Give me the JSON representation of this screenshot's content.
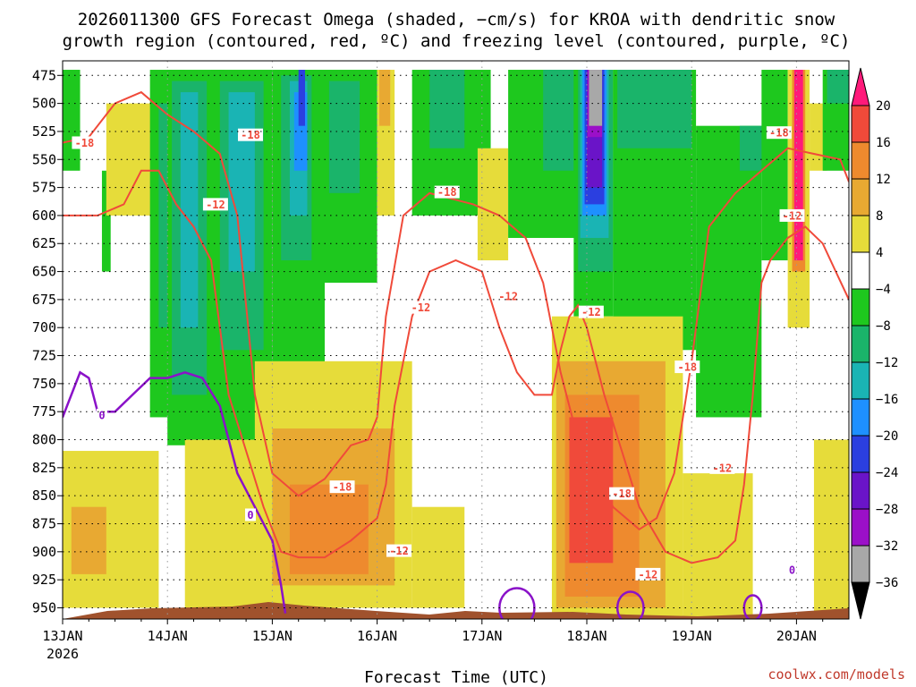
{
  "title_line1": "2026011300 GFS Forecast Omega (shaded, −cm/s) for KROA with dendritic snow",
  "title_line2": "growth region (contoured, red, ºC) and freezing level (contoured, purple, ºC)",
  "xlabel": "Forecast Time (UTC)",
  "credit": "coolwx.com/models",
  "colors": {
    "dgz_contour": "#f04a3a",
    "freezing_contour": "#8a12c8",
    "terrain": "#a0522d"
  },
  "chart_data": {
    "type": "heatmap",
    "title": "2026011300 GFS Forecast Omega (shaded, −cm/s) for KROA with dendritic snow growth region (contoured, red, ºC) and freezing level (contoured, purple, ºC)",
    "xlabel": "Forecast Time (UTC)",
    "ylabel": "",
    "y_axis": "pressure (hPa), inverted",
    "ylim": [
      960,
      462
    ],
    "x_ticks": [
      {
        "label": "13JAN",
        "sub": "2026",
        "hour": 0
      },
      {
        "label": "14JAN",
        "hour": 24
      },
      {
        "label": "15JAN",
        "hour": 48
      },
      {
        "label": "16JAN",
        "hour": 72
      },
      {
        "label": "17JAN",
        "hour": 96
      },
      {
        "label": "18JAN",
        "hour": 120
      },
      {
        "label": "19JAN",
        "hour": 144
      },
      {
        "label": "20JAN",
        "hour": 168
      }
    ],
    "xlim_hours": [
      0,
      180
    ],
    "y_ticks": [
      "475",
      "500",
      "525",
      "550",
      "575",
      "600",
      "625",
      "650",
      "675",
      "700",
      "725",
      "750",
      "775",
      "800",
      "825",
      "850",
      "875",
      "900",
      "925",
      "950"
    ],
    "grid": true,
    "colorbar": {
      "labels": [
        "20",
        "16",
        "12",
        "8",
        "4",
        "−4",
        "−8",
        "−12",
        "−16",
        "−20",
        "−24",
        "−28",
        "−32",
        "−36"
      ],
      "bins": [
        {
          "range": [
            20,
            24
          ],
          "color": "#ff1a7a"
        },
        {
          "range": [
            16,
            20
          ],
          "color": "#f04a3a"
        },
        {
          "range": [
            12,
            16
          ],
          "color": "#ee8a2e"
        },
        {
          "range": [
            8,
            12
          ],
          "color": "#e8a932"
        },
        {
          "range": [
            4,
            8
          ],
          "color": "#e6dc3a"
        },
        {
          "range": [
            -4,
            4
          ],
          "color": "#ffffff"
        },
        {
          "range": [
            -8,
            -4
          ],
          "color": "#1ec81e"
        },
        {
          "range": [
            -12,
            -8
          ],
          "color": "#1ab46a"
        },
        {
          "range": [
            -16,
            -12
          ],
          "color": "#1ab4b4"
        },
        {
          "range": [
            -20,
            -16
          ],
          "color": "#1e90ff"
        },
        {
          "range": [
            -24,
            -20
          ],
          "color": "#2b3fe0"
        },
        {
          "range": [
            -28,
            -24
          ],
          "color": "#6a14c8"
        },
        {
          "range": [
            -32,
            -28
          ],
          "color": "#9b10c8"
        },
        {
          "range": [
            -36,
            -32
          ],
          "color": "#a8a8a8"
        },
        {
          "range": [
            -40,
            -36
          ],
          "color": "#000000"
        }
      ]
    },
    "contour_labels": {
      "dgz": [
        "-18",
        "-12"
      ],
      "freezing": [
        "0"
      ]
    },
    "shading": [
      {
        "t0": 0,
        "t1": 4,
        "p0": 470,
        "p1": 560,
        "omega": -6
      },
      {
        "t0": 9,
        "t1": 11,
        "p0": 560,
        "p1": 650,
        "omega": -6
      },
      {
        "t0": 10,
        "t1": 22,
        "p0": 500,
        "p1": 600,
        "omega": 6
      },
      {
        "t0": 20,
        "t1": 28,
        "p0": 470,
        "p1": 780,
        "omega": -6
      },
      {
        "t0": 22,
        "t1": 27,
        "p0": 500,
        "p1": 700,
        "omega": -10
      },
      {
        "t0": 24,
        "t1": 37,
        "p0": 470,
        "p1": 805,
        "omega": -6
      },
      {
        "t0": 25,
        "t1": 33,
        "p0": 480,
        "p1": 760,
        "omega": -10
      },
      {
        "t0": 27,
        "t1": 31,
        "p0": 490,
        "p1": 700,
        "omega": -14
      },
      {
        "t0": 34,
        "t1": 48,
        "p0": 470,
        "p1": 800,
        "omega": -6
      },
      {
        "t0": 36,
        "t1": 46,
        "p0": 480,
        "p1": 720,
        "omega": -10
      },
      {
        "t0": 38,
        "t1": 44,
        "p0": 490,
        "p1": 650,
        "omega": -14
      },
      {
        "t0": 48,
        "t1": 60,
        "p0": 470,
        "p1": 740,
        "omega": -6
      },
      {
        "t0": 50,
        "t1": 57,
        "p0": 475,
        "p1": 640,
        "omega": -10
      },
      {
        "t0": 52,
        "t1": 56,
        "p0": 480,
        "p1": 600,
        "omega": -14
      },
      {
        "t0": 53,
        "t1": 56,
        "p0": 490,
        "p1": 560,
        "omega": -18
      },
      {
        "t0": 54,
        "t1": 55.5,
        "p0": 470,
        "p1": 520,
        "omega": -22
      },
      {
        "t0": 60,
        "t1": 72,
        "p0": 470,
        "p1": 660,
        "omega": -6
      },
      {
        "t0": 61,
        "t1": 68,
        "p0": 480,
        "p1": 580,
        "omega": -10
      },
      {
        "t0": 72,
        "t1": 76,
        "p0": 470,
        "p1": 600,
        "omega": 6
      },
      {
        "t0": 72.5,
        "t1": 75,
        "p0": 470,
        "p1": 520,
        "omega": 10
      },
      {
        "t0": 80,
        "t1": 98,
        "p0": 470,
        "p1": 600,
        "omega": -6
      },
      {
        "t0": 84,
        "t1": 92,
        "p0": 470,
        "p1": 540,
        "omega": -10
      },
      {
        "t0": 95,
        "t1": 102,
        "p0": 540,
        "p1": 640,
        "omega": 6
      },
      {
        "t0": 102,
        "t1": 118,
        "p0": 470,
        "p1": 620,
        "omega": -6
      },
      {
        "t0": 110,
        "t1": 117,
        "p0": 470,
        "p1": 560,
        "omega": -10
      },
      {
        "t0": 117,
        "t1": 126,
        "p0": 470,
        "p1": 690,
        "omega": -6
      },
      {
        "t0": 118,
        "t1": 126,
        "p0": 470,
        "p1": 650,
        "omega": -10
      },
      {
        "t0": 118.5,
        "t1": 125,
        "p0": 470,
        "p1": 620,
        "omega": -14
      },
      {
        "t0": 119,
        "t1": 124.5,
        "p0": 470,
        "p1": 600,
        "omega": -18
      },
      {
        "t0": 119.5,
        "t1": 124,
        "p0": 470,
        "p1": 590,
        "omega": -22
      },
      {
        "t0": 120,
        "t1": 123.5,
        "p0": 470,
        "p1": 575,
        "omega": -26
      },
      {
        "t0": 120.2,
        "t1": 123.5,
        "p0": 470,
        "p1": 530,
        "omega": -30
      },
      {
        "t0": 120.5,
        "t1": 123.5,
        "p0": 470,
        "p1": 520,
        "omega": -34
      },
      {
        "t0": 126,
        "t1": 145,
        "p0": 470,
        "p1": 720,
        "omega": -6
      },
      {
        "t0": 127,
        "t1": 144,
        "p0": 470,
        "p1": 540,
        "omega": -10
      },
      {
        "t0": 145,
        "t1": 160,
        "p0": 520,
        "p1": 780,
        "omega": -6
      },
      {
        "t0": 155,
        "t1": 162,
        "p0": 520,
        "p1": 560,
        "omega": -10
      },
      {
        "t0": 160,
        "t1": 166,
        "p0": 470,
        "p1": 640,
        "omega": -6
      },
      {
        "t0": 166,
        "t1": 171,
        "p0": 470,
        "p1": 700,
        "omega": 6
      },
      {
        "t0": 167,
        "t1": 170,
        "p0": 470,
        "p1": 650,
        "omega": 12
      },
      {
        "t0": 167.5,
        "t1": 169.5,
        "p0": 470,
        "p1": 640,
        "omega": 20
      },
      {
        "t0": 171,
        "t1": 175,
        "p0": 500,
        "p1": 560,
        "omega": 6
      },
      {
        "t0": 174,
        "t1": 180,
        "p0": 470,
        "p1": 560,
        "omega": -6
      },
      {
        "t0": 175,
        "t1": 180,
        "p0": 470,
        "p1": 500,
        "omega": -10
      },
      {
        "t0": 0,
        "t1": 22,
        "p0": 810,
        "p1": 950,
        "omega": 6
      },
      {
        "t0": 2,
        "t1": 10,
        "p0": 860,
        "p1": 920,
        "omega": 10
      },
      {
        "t0": 28,
        "t1": 50,
        "p0": 800,
        "p1": 960,
        "omega": 6
      },
      {
        "t0": 44,
        "t1": 80,
        "p0": 730,
        "p1": 950,
        "omega": 6
      },
      {
        "t0": 48,
        "t1": 76,
        "p0": 790,
        "p1": 930,
        "omega": 10
      },
      {
        "t0": 52,
        "t1": 70,
        "p0": 840,
        "p1": 920,
        "omega": 14
      },
      {
        "t0": 80,
        "t1": 92,
        "p0": 860,
        "p1": 950,
        "omega": 6
      },
      {
        "t0": 112,
        "t1": 142,
        "p0": 690,
        "p1": 960,
        "omega": 6
      },
      {
        "t0": 113,
        "t1": 138,
        "p0": 730,
        "p1": 950,
        "omega": 10
      },
      {
        "t0": 115,
        "t1": 132,
        "p0": 760,
        "p1": 940,
        "omega": 14
      },
      {
        "t0": 116,
        "t1": 126,
        "p0": 780,
        "p1": 910,
        "omega": 18
      },
      {
        "t0": 142,
        "t1": 158,
        "p0": 830,
        "p1": 960,
        "omega": 6
      },
      {
        "t0": 172,
        "t1": 180,
        "p0": 800,
        "p1": 960,
        "omega": 6
      }
    ],
    "dgz_minus12": [
      [
        0,
        600
      ],
      [
        8,
        600
      ],
      [
        14,
        590
      ],
      [
        18,
        560
      ],
      [
        22,
        560
      ],
      [
        26,
        590
      ],
      [
        30,
        610
      ],
      [
        34,
        640
      ],
      [
        36,
        700
      ],
      [
        38,
        760
      ],
      [
        42,
        810
      ],
      [
        46,
        860
      ],
      [
        50,
        900
      ],
      [
        54,
        905
      ],
      [
        60,
        905
      ],
      [
        66,
        890
      ],
      [
        72,
        870
      ],
      [
        74,
        840
      ],
      [
        76,
        770
      ],
      [
        80,
        690
      ],
      [
        84,
        650
      ],
      [
        90,
        640
      ],
      [
        96,
        650
      ],
      [
        100,
        700
      ],
      [
        104,
        740
      ],
      [
        108,
        760
      ],
      [
        112,
        760
      ],
      [
        114,
        720
      ],
      [
        116,
        690
      ],
      [
        118,
        680
      ],
      [
        120,
        700
      ],
      [
        124,
        760
      ],
      [
        128,
        810
      ],
      [
        132,
        860
      ],
      [
        138,
        900
      ],
      [
        144,
        910
      ],
      [
        150,
        905
      ],
      [
        154,
        890
      ],
      [
        156,
        840
      ],
      [
        158,
        760
      ],
      [
        160,
        660
      ],
      [
        162,
        640
      ],
      [
        166,
        620
      ],
      [
        170,
        610
      ],
      [
        174,
        625
      ],
      [
        177,
        650
      ],
      [
        180,
        675
      ]
    ],
    "dgz_minus18": [
      [
        0,
        535
      ],
      [
        6,
        530
      ],
      [
        12,
        500
      ],
      [
        18,
        490
      ],
      [
        24,
        510
      ],
      [
        30,
        525
      ],
      [
        36,
        545
      ],
      [
        40,
        600
      ],
      [
        42,
        680
      ],
      [
        44,
        760
      ],
      [
        48,
        830
      ],
      [
        54,
        850
      ],
      [
        60,
        835
      ],
      [
        66,
        805
      ],
      [
        70,
        800
      ],
      [
        72,
        780
      ],
      [
        74,
        690
      ],
      [
        78,
        600
      ],
      [
        84,
        580
      ],
      [
        94,
        590
      ],
      [
        100,
        600
      ],
      [
        106,
        620
      ],
      [
        110,
        660
      ],
      [
        114,
        740
      ],
      [
        118,
        800
      ],
      [
        122,
        830
      ],
      [
        126,
        860
      ],
      [
        132,
        880
      ],
      [
        136,
        870
      ],
      [
        140,
        830
      ],
      [
        144,
        730
      ],
      [
        148,
        610
      ],
      [
        154,
        580
      ],
      [
        160,
        560
      ],
      [
        166,
        540
      ],
      [
        172,
        545
      ],
      [
        178,
        550
      ],
      [
        180,
        570
      ]
    ],
    "freezing_0": [
      [
        0,
        780
      ],
      [
        4,
        740
      ],
      [
        6,
        745
      ],
      [
        8,
        775
      ],
      [
        12,
        775
      ],
      [
        16,
        760
      ],
      [
        20,
        745
      ],
      [
        24,
        745
      ],
      [
        28,
        740
      ],
      [
        32,
        745
      ],
      [
        36,
        770
      ],
      [
        38,
        800
      ],
      [
        40,
        830
      ],
      [
        44,
        860
      ],
      [
        48,
        890
      ],
      [
        50,
        930
      ],
      [
        51,
        955
      ]
    ]
  }
}
